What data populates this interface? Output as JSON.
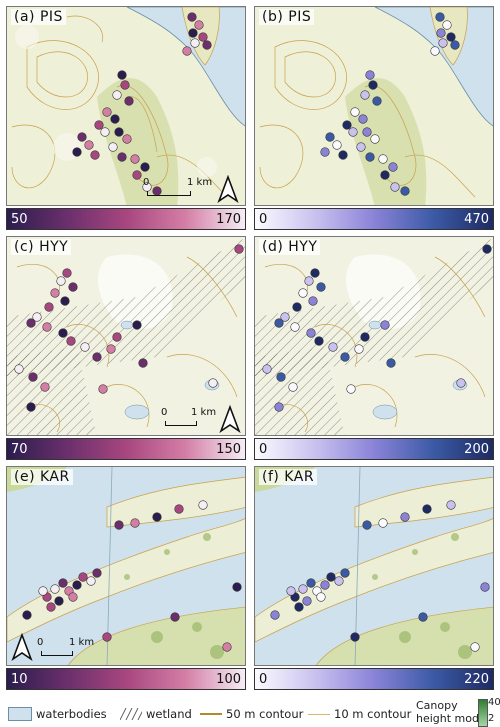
{
  "panels": [
    {
      "id": "a",
      "label": "(a)  PIS",
      "cbar_min": "50",
      "cbar_max": "170",
      "scale": "magma"
    },
    {
      "id": "b",
      "label": "(b)  PIS",
      "cbar_min": "0",
      "cbar_max": "470",
      "scale": "purple"
    },
    {
      "id": "c",
      "label": "(c) HYY",
      "cbar_min": "70",
      "cbar_max": "150",
      "scale": "magma"
    },
    {
      "id": "d",
      "label": "(d)  HYY",
      "cbar_min": "0",
      "cbar_max": "200",
      "scale": "purple"
    },
    {
      "id": "e",
      "label": "(e)  KAR",
      "cbar_min": "10",
      "cbar_max": "100",
      "scale": "magma"
    },
    {
      "id": "f",
      "label": "(f)  KAR",
      "cbar_min": "0",
      "cbar_max": "220",
      "scale": "purple"
    }
  ],
  "scalebars": {
    "a": {
      "zero": "0",
      "dist": "1 km"
    },
    "c": {
      "zero": "0",
      "dist": "1 km"
    },
    "e": {
      "zero": "0",
      "dist": "1 km"
    }
  },
  "legend": {
    "waterbodies": "waterbodies",
    "wetland": "wetland",
    "contour50": "50 m contour",
    "contour10": "10 m contour",
    "canopy_line1": "Canopy",
    "canopy_line2": "height model",
    "canopy_max": "40",
    "canopy_min": "2"
  },
  "colors": {
    "water": "#cfe1ec",
    "land": "#f4f3e6",
    "vegetation": "#c9d99b",
    "contour": "#c9a04a",
    "magma": [
      "#2b1d4e",
      "#6a2f6c",
      "#a8467f",
      "#d47ea6",
      "#f5eef5"
    ],
    "purple": [
      "#fbfbff",
      "#c9c2ef",
      "#8a83d8",
      "#3b5aa6",
      "#1f2a63"
    ]
  }
}
